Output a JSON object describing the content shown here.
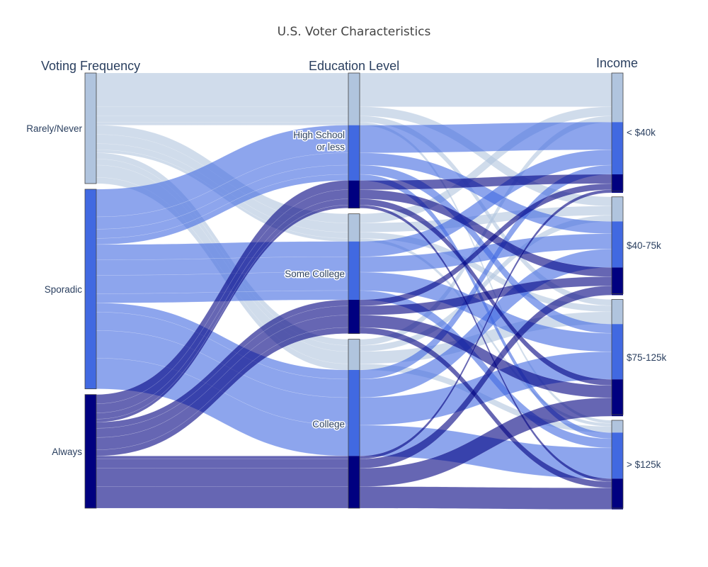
{
  "chart_data": {
    "type": "sankey",
    "title": "U.S. Voter Characteristics",
    "dimensions": [
      {
        "name": "Voting Frequency",
        "categories": [
          "Rarely/Never",
          "Sporadic",
          "Always"
        ]
      },
      {
        "name": "Education Level",
        "categories": [
          "High School or less",
          "Some College",
          "College"
        ]
      },
      {
        "name": "Income",
        "categories": [
          "< $40k",
          "$40-75k",
          "$75-125k",
          "> $125k"
        ]
      }
    ],
    "node_labels": {
      "Rarely/Never": "Rarely/Never",
      "Sporadic": "Sporadic",
      "Always": "Always",
      "High School or less": [
        "High School",
        "or less"
      ],
      "Some College": "Some College",
      "College": "College",
      "< $40k": "< $40k",
      "$40-75k": "$40-75k",
      "$75-125k": "$75-125k",
      "> $125k": "> $125k"
    },
    "colors": {
      "Rarely/Never": "#b0c4de",
      "Sporadic": "#4169e1",
      "Always": "#000080"
    },
    "link_colors": {
      "Rarely/Never": "rgba(176,196,222,0.6)",
      "Sporadic": "rgba(65,105,225,0.6)",
      "Always": "rgba(0,0,128,0.6)"
    },
    "flows": [
      {
        "voting": "Rarely/Never",
        "education": "High School or less",
        "income": "< $40k",
        "value": 11
      },
      {
        "voting": "Rarely/Never",
        "education": "High School or less",
        "income": "$40-75k",
        "value": 3
      },
      {
        "voting": "Rarely/Never",
        "education": "High School or less",
        "income": "$75-125k",
        "value": 2
      },
      {
        "voting": "Rarely/Never",
        "education": "High School or less",
        "income": "> $125k",
        "value": 1
      },
      {
        "voting": "Rarely/Never",
        "education": "Some College",
        "income": "< $40k",
        "value": 3
      },
      {
        "voting": "Rarely/Never",
        "education": "Some College",
        "income": "$40-75k",
        "value": 3
      },
      {
        "voting": "Rarely/Never",
        "education": "Some College",
        "income": "$75-125k",
        "value": 2
      },
      {
        "voting": "Rarely/Never",
        "education": "Some College",
        "income": "> $125k",
        "value": 1
      },
      {
        "voting": "Rarely/Never",
        "education": "College",
        "income": "< $40k",
        "value": 2
      },
      {
        "voting": "Rarely/Never",
        "education": "College",
        "income": "$40-75k",
        "value": 2
      },
      {
        "voting": "Rarely/Never",
        "education": "College",
        "income": "$75-125k",
        "value": 4
      },
      {
        "voting": "Rarely/Never",
        "education": "College",
        "income": "> $125k",
        "value": 2
      },
      {
        "voting": "Sporadic",
        "education": "High School or less",
        "income": "< $40k",
        "value": 9
      },
      {
        "voting": "Sporadic",
        "education": "High School or less",
        "income": "$40-75k",
        "value": 4
      },
      {
        "voting": "Sporadic",
        "education": "High School or less",
        "income": "$75-125k",
        "value": 3
      },
      {
        "voting": "Sporadic",
        "education": "High School or less",
        "income": "> $125k",
        "value": 2
      },
      {
        "voting": "Sporadic",
        "education": "Some College",
        "income": "< $40k",
        "value": 5
      },
      {
        "voting": "Sporadic",
        "education": "Some College",
        "income": "$40-75k",
        "value": 5
      },
      {
        "voting": "Sporadic",
        "education": "Some College",
        "income": "$75-125k",
        "value": 6
      },
      {
        "voting": "Sporadic",
        "education": "Some College",
        "income": "> $125k",
        "value": 3
      },
      {
        "voting": "Sporadic",
        "education": "College",
        "income": "< $40k",
        "value": 3
      },
      {
        "voting": "Sporadic",
        "education": "College",
        "income": "$40-75k",
        "value": 6
      },
      {
        "voting": "Sporadic",
        "education": "College",
        "income": "$75-125k",
        "value": 9
      },
      {
        "voting": "Sporadic",
        "education": "College",
        "income": "> $125k",
        "value": 10
      },
      {
        "voting": "Always",
        "education": "High School or less",
        "income": "< $40k",
        "value": 3
      },
      {
        "voting": "Always",
        "education": "High School or less",
        "income": "$40-75k",
        "value": 3
      },
      {
        "voting": "Always",
        "education": "High School or less",
        "income": "$75-125k",
        "value": 2
      },
      {
        "voting": "Always",
        "education": "High School or less",
        "income": "> $125k",
        "value": 1
      },
      {
        "voting": "Always",
        "education": "Some College",
        "income": "< $40k",
        "value": 2
      },
      {
        "voting": "Always",
        "education": "Some College",
        "income": "$40-75k",
        "value": 3
      },
      {
        "voting": "Always",
        "education": "Some College",
        "income": "$75-125k",
        "value": 4
      },
      {
        "voting": "Always",
        "education": "Some College",
        "income": "> $125k",
        "value": 2
      },
      {
        "voting": "Always",
        "education": "College",
        "income": "< $40k",
        "value": 1
      },
      {
        "voting": "Always",
        "education": "College",
        "income": "$40-75k",
        "value": 3
      },
      {
        "voting": "Always",
        "education": "College",
        "income": "$75-125k",
        "value": 6
      },
      {
        "voting": "Always",
        "education": "College",
        "income": "> $125k",
        "value": 7
      }
    ]
  }
}
